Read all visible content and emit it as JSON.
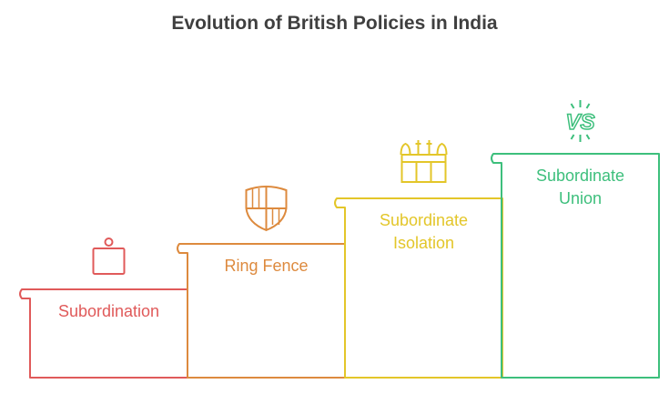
{
  "title": "Evolution of British Policies in India",
  "steps": [
    {
      "label_lines": [
        "Subordination"
      ],
      "color": "#e05a5a",
      "icon": "ballot-box-icon"
    },
    {
      "label_lines": [
        "Ring Fence"
      ],
      "color": "#dd8a3e",
      "icon": "shield-icon"
    },
    {
      "label_lines": [
        "Subordinate",
        "Isolation"
      ],
      "color": "#e3c629",
      "icon": "palace-icon"
    },
    {
      "label_lines": [
        "Subordinate",
        "Union"
      ],
      "color": "#3dbf7c",
      "icon": "versus-icon"
    }
  ]
}
